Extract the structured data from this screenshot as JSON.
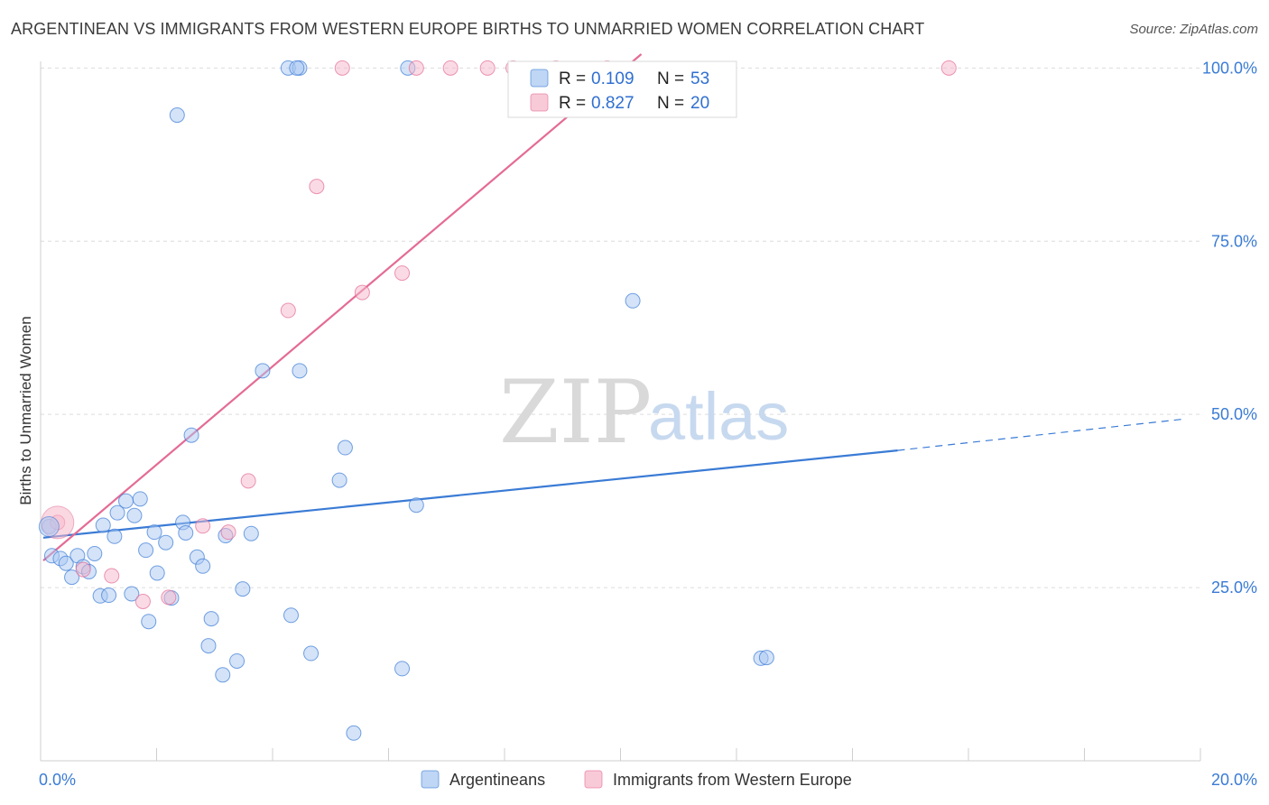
{
  "header": {
    "title": "ARGENTINEAN VS IMMIGRANTS FROM WESTERN EUROPE BIRTHS TO UNMARRIED WOMEN CORRELATION CHART",
    "source": "Source: ZipAtlas.com"
  },
  "watermark": {
    "zip": "ZIP",
    "atlas": "atlas"
  },
  "legend_top": [
    {
      "r_label": "R =",
      "r_value": "0.109",
      "n_label": "N =",
      "n_value": "53",
      "color": "#a9c8f2"
    },
    {
      "r_label": "R =",
      "r_value": "0.827",
      "n_label": "N =",
      "n_value": "20",
      "color": "#f5b8cb"
    }
  ],
  "legend_bottom": [
    {
      "label": "Argentineans",
      "color": "#a9c8f2"
    },
    {
      "label": "Immigrants from Western Europe",
      "color": "#f5b8cb"
    }
  ],
  "chart_data": {
    "type": "scatter",
    "title": "ARGENTINEAN VS IMMIGRANTS FROM WESTERN EUROPE BIRTHS TO UNMARRIED WOMEN CORRELATION CHART",
    "xlabel": "",
    "ylabel": "Births to Unmarried Women",
    "xlim": [
      0,
      20
    ],
    "ylim": [
      0,
      102
    ],
    "x_ticks": [
      "0.0%",
      "20.0%"
    ],
    "y_ticks": [
      "25.0%",
      "50.0%",
      "75.0%",
      "100.0%"
    ],
    "y_tick_values": [
      25,
      50,
      75,
      100
    ],
    "grid": true,
    "legend_position": "top-center",
    "series": [
      {
        "name": "Argentineans",
        "color": "#3a7bd5",
        "fill": "#a9c8f2",
        "points": [
          [
            0.1,
            33.8
          ],
          [
            0.15,
            29.6
          ],
          [
            0.3,
            29.2
          ],
          [
            0.4,
            28.5
          ],
          [
            0.5,
            26.5
          ],
          [
            0.6,
            29.6
          ],
          [
            0.7,
            28.0
          ],
          [
            0.8,
            27.3
          ],
          [
            0.9,
            29.9
          ],
          [
            1.0,
            23.8
          ],
          [
            1.05,
            34.0
          ],
          [
            1.15,
            23.9
          ],
          [
            1.25,
            32.4
          ],
          [
            1.3,
            35.8
          ],
          [
            1.45,
            37.5
          ],
          [
            1.55,
            24.1
          ],
          [
            1.6,
            35.4
          ],
          [
            1.7,
            37.8
          ],
          [
            1.8,
            30.4
          ],
          [
            1.85,
            20.1
          ],
          [
            1.95,
            33.0
          ],
          [
            2.0,
            27.1
          ],
          [
            2.15,
            31.5
          ],
          [
            2.25,
            23.5
          ],
          [
            2.35,
            93.2
          ],
          [
            2.45,
            34.4
          ],
          [
            2.5,
            32.9
          ],
          [
            2.6,
            47.0
          ],
          [
            2.7,
            29.4
          ],
          [
            2.8,
            28.1
          ],
          [
            2.9,
            16.6
          ],
          [
            2.95,
            20.5
          ],
          [
            3.15,
            12.4
          ],
          [
            3.2,
            32.5
          ],
          [
            3.4,
            14.4
          ],
          [
            3.5,
            24.8
          ],
          [
            3.65,
            32.8
          ],
          [
            3.85,
            56.3
          ],
          [
            4.3,
            100.0
          ],
          [
            4.35,
            21.0
          ],
          [
            4.5,
            100.0
          ],
          [
            4.5,
            56.3
          ],
          [
            4.7,
            15.5
          ],
          [
            5.2,
            40.5
          ],
          [
            5.3,
            45.2
          ],
          [
            5.45,
            4.0
          ],
          [
            6.3,
            13.3
          ],
          [
            6.4,
            100.0
          ],
          [
            6.55,
            36.9
          ],
          [
            10.35,
            66.4
          ],
          [
            12.6,
            14.8
          ],
          [
            12.7,
            14.9
          ],
          [
            4.45,
            100.0
          ]
        ],
        "trend": {
          "x": [
            0,
            15.0
          ],
          "y": [
            32.2,
            44.8
          ],
          "dashed_to": [
            20.0,
            49.3
          ]
        }
      },
      {
        "name": "Immigrants from Western Europe",
        "color": "#e46b95",
        "fill": "#f5b8cb",
        "points": [
          [
            0.25,
            34.4
          ],
          [
            0.7,
            27.6
          ],
          [
            1.2,
            26.7
          ],
          [
            1.75,
            23.0
          ],
          [
            2.2,
            23.6
          ],
          [
            2.8,
            33.9
          ],
          [
            3.25,
            33.0
          ],
          [
            3.6,
            40.4
          ],
          [
            4.3,
            65.0
          ],
          [
            4.8,
            82.9
          ],
          [
            5.25,
            100.0
          ],
          [
            5.6,
            67.6
          ],
          [
            6.3,
            70.4
          ],
          [
            6.55,
            100.0
          ],
          [
            7.15,
            100.0
          ],
          [
            7.8,
            100.0
          ],
          [
            8.25,
            100.0
          ],
          [
            9.0,
            100.0
          ],
          [
            9.9,
            100.0
          ],
          [
            15.9,
            100.0
          ]
        ],
        "trend": {
          "x": [
            0,
            10.5
          ],
          "y": [
            28.9,
            102.0
          ]
        }
      }
    ]
  }
}
